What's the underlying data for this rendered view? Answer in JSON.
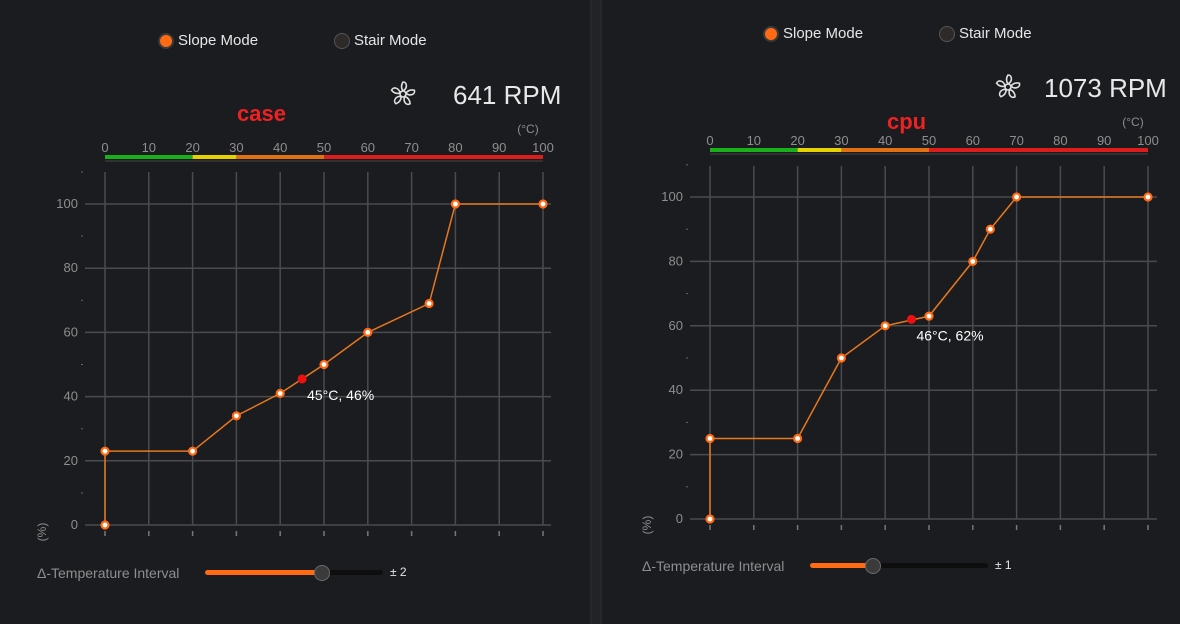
{
  "panels": [
    {
      "id": "case",
      "title": "case",
      "modes": {
        "slope": "Slope Mode",
        "stair": "Stair Mode",
        "selected": "slope"
      },
      "rpm": "641 RPM",
      "temp_unit": "(°C)",
      "y_unit": "(%)",
      "x_ticks": [
        0,
        10,
        20,
        30,
        40,
        50,
        60,
        70,
        80,
        90,
        100
      ],
      "y_ticks": [
        0,
        20,
        40,
        60,
        80,
        100
      ],
      "curve_points": [
        {
          "temp": 0,
          "pct": 0
        },
        {
          "temp": 0,
          "pct": 23
        },
        {
          "temp": 20,
          "pct": 23
        },
        {
          "temp": 30,
          "pct": 34
        },
        {
          "temp": 40,
          "pct": 41
        },
        {
          "temp": 50,
          "pct": 50
        },
        {
          "temp": 60,
          "pct": 60
        },
        {
          "temp": 74,
          "pct": 69
        },
        {
          "temp": 80,
          "pct": 100
        },
        {
          "temp": 100,
          "pct": 100
        }
      ],
      "current_point": {
        "temp": 45,
        "pct": 45.5
      },
      "current_label": "45°C, 46%",
      "interval_label": "Δ-Temperature Interval",
      "interval_value": "± 2",
      "interval_fraction": 0.65
    },
    {
      "id": "cpu",
      "title": "cpu",
      "modes": {
        "slope": "Slope Mode",
        "stair": "Stair Mode",
        "selected": "slope"
      },
      "rpm": "1073 RPM",
      "temp_unit": "(°C)",
      "y_unit": "(%)",
      "x_ticks": [
        0,
        10,
        20,
        30,
        40,
        50,
        60,
        70,
        80,
        90,
        100
      ],
      "y_ticks": [
        0,
        20,
        40,
        60,
        80,
        100
      ],
      "curve_points": [
        {
          "temp": 0,
          "pct": 0
        },
        {
          "temp": 0,
          "pct": 25
        },
        {
          "temp": 20,
          "pct": 25
        },
        {
          "temp": 30,
          "pct": 50
        },
        {
          "temp": 40,
          "pct": 60
        },
        {
          "temp": 50,
          "pct": 63
        },
        {
          "temp": 60,
          "pct": 80
        },
        {
          "temp": 64,
          "pct": 90
        },
        {
          "temp": 70,
          "pct": 100
        },
        {
          "temp": 100,
          "pct": 100
        }
      ],
      "current_point": {
        "temp": 46,
        "pct": 62
      },
      "current_label": "46°C, 62%",
      "interval_label": "Δ-Temperature Interval",
      "interval_value": "± 1",
      "interval_fraction": 0.35
    }
  ],
  "colors": {
    "accent": "#ff6a13",
    "line": "#e8781e",
    "current": "#ee1111",
    "grid": "#4a4b4e",
    "tick_text": "#8e8e8e",
    "title": "#ee2222",
    "scale_green": "#19b019",
    "scale_yellow": "#e6d200",
    "scale_orange": "#e07010",
    "scale_red": "#dd1c1c"
  }
}
